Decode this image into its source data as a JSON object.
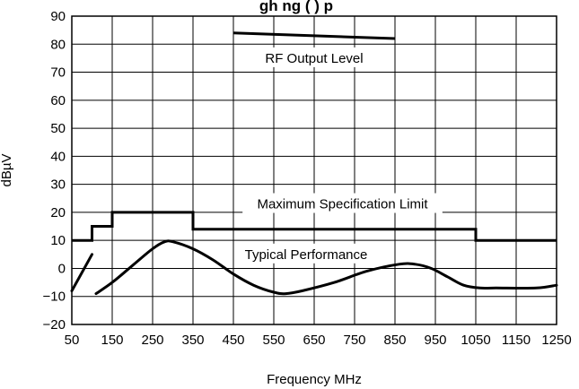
{
  "chart_data": {
    "type": "line",
    "title": "gh    ng (                 )    p",
    "xlabel": "Frequency MHz",
    "ylabel": "dBµV",
    "xlim": [
      50,
      1250
    ],
    "ylim": [
      -20,
      90
    ],
    "x_ticks": [
      50,
      150,
      250,
      350,
      450,
      550,
      650,
      750,
      850,
      950,
      1050,
      1150,
      1250
    ],
    "y_ticks": [
      -20,
      -10,
      0,
      10,
      20,
      30,
      40,
      50,
      60,
      70,
      80,
      90
    ],
    "x_tick_labels": [
      "50",
      "150",
      "250",
      "350",
      "450",
      "550",
      "650",
      "750",
      "850",
      "950",
      "1050",
      "1150",
      "1250"
    ],
    "y_tick_labels": [
      "−20",
      "−10",
      "0",
      "10",
      "20",
      "30",
      "40",
      "50",
      "60",
      "70",
      "80",
      "90"
    ],
    "grid": true,
    "series": [
      {
        "name": "RF Output Level",
        "x": [
          450,
          850
        ],
        "y": [
          84,
          82
        ]
      },
      {
        "name": "Maximum Specification Limit",
        "x": [
          50,
          100,
          100,
          150,
          150,
          350,
          350,
          1050,
          1050,
          1250
        ],
        "y": [
          10,
          10,
          15,
          15,
          20,
          20,
          14,
          14,
          10,
          10
        ]
      },
      {
        "name": "Typical Performance",
        "segments": [
          {
            "x": [
              50,
              100
            ],
            "y": [
              -8,
              5
            ]
          },
          {
            "x": [
              110,
              150,
              200,
              250,
              280,
              300,
              350,
              400,
              450,
              500,
              550,
              580,
              620,
              700,
              780,
              860,
              900,
              940,
              980,
              1020,
              1060,
              1100,
              1200,
              1250
            ],
            "y": [
              -9,
              -5,
              1,
              7,
              9.5,
              9.5,
              7,
              3,
              -2,
              -6,
              -8.5,
              -9,
              -8,
              -5,
              -1,
              1.5,
              1.5,
              0,
              -3,
              -6,
              -7,
              -7,
              -7,
              -6
            ]
          }
        ]
      }
    ],
    "annotations": [
      {
        "text": "RF Output Level",
        "x": 650,
        "y": 75
      },
      {
        "text": "Maximum Specification Limit",
        "x": 720,
        "y": 23
      },
      {
        "text": "Typical Performance",
        "x": 630,
        "y": 5
      }
    ]
  }
}
